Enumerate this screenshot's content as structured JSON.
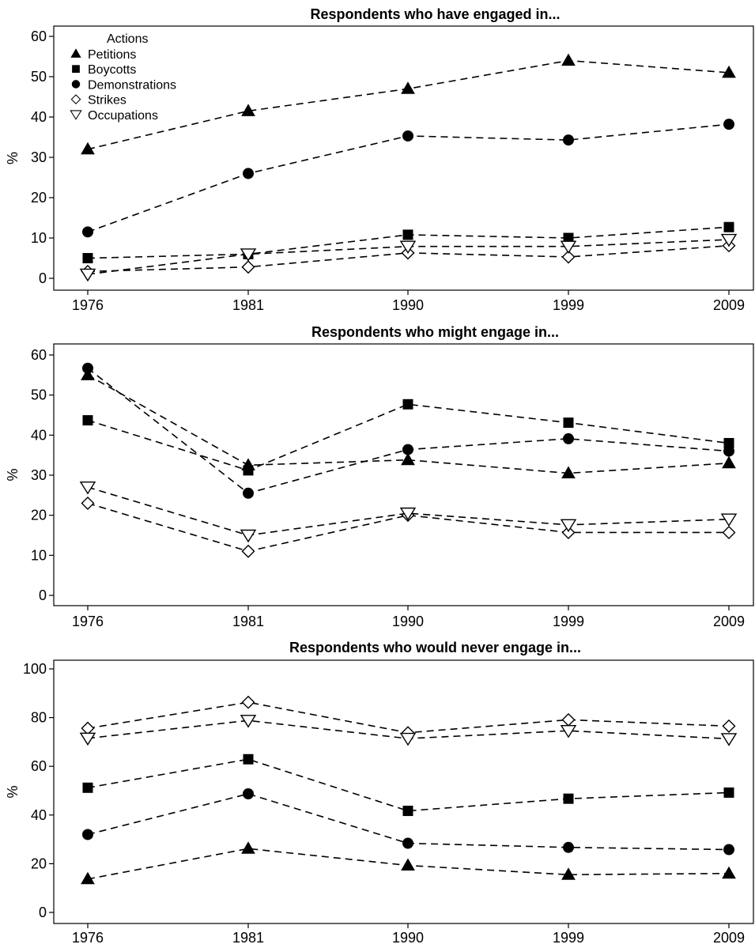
{
  "chart_data": [
    {
      "type": "line",
      "title": "Respondents who have engaged in...",
      "xlabel": "",
      "ylabel": "%",
      "x": [
        "1976",
        "1981",
        "1990",
        "1999",
        "2009"
      ],
      "ylim": [
        0,
        60
      ],
      "yticks": [
        0,
        10,
        20,
        30,
        40,
        50,
        60
      ],
      "legend": {
        "title": "Actions",
        "position": "top-left",
        "items": [
          "Petitions",
          "Boycotts",
          "Demonstrations",
          "Strikes",
          "Occupations"
        ]
      },
      "series": [
        {
          "name": "Petitions",
          "marker": "triangle-filled",
          "values": [
            32,
            41.5,
            47,
            54,
            51
          ]
        },
        {
          "name": "Boycotts",
          "marker": "square-filled",
          "values": [
            5,
            6,
            10.8,
            10,
            12.7
          ]
        },
        {
          "name": "Demonstrations",
          "marker": "circle-filled",
          "values": [
            11.5,
            26,
            35.3,
            34.3,
            38.2
          ]
        },
        {
          "name": "Strikes",
          "marker": "diamond-open",
          "values": [
            1.7,
            2.8,
            6.3,
            5.3,
            8.1
          ]
        },
        {
          "name": "Occupations",
          "marker": "triangle-down-open",
          "values": [
            1,
            6,
            7.9,
            7.9,
            9.6
          ]
        }
      ]
    },
    {
      "type": "line",
      "title": "Respondents who might engage in...",
      "xlabel": "",
      "ylabel": "%",
      "x": [
        "1976",
        "1981",
        "1990",
        "1999",
        "2009"
      ],
      "ylim": [
        0,
        60
      ],
      "yticks": [
        0,
        10,
        20,
        30,
        40,
        50,
        60
      ],
      "series": [
        {
          "name": "Petitions",
          "marker": "triangle-filled",
          "values": [
            55,
            32.5,
            33.8,
            30.5,
            33
          ]
        },
        {
          "name": "Boycotts",
          "marker": "square-filled",
          "values": [
            43.7,
            31.2,
            47.7,
            43.1,
            38
          ]
        },
        {
          "name": "Demonstrations",
          "marker": "circle-filled",
          "values": [
            56.7,
            25.5,
            36.4,
            39.1,
            36
          ]
        },
        {
          "name": "Strikes",
          "marker": "diamond-open",
          "values": [
            23,
            11,
            20,
            15.7,
            15.7
          ]
        },
        {
          "name": "Occupations",
          "marker": "triangle-down-open",
          "values": [
            27,
            15,
            20.5,
            17.6,
            19
          ]
        }
      ]
    },
    {
      "type": "line",
      "title": "Respondents who would never engage in...",
      "xlabel": "",
      "ylabel": "%",
      "x": [
        "1976",
        "1981",
        "1990",
        "1999",
        "2009"
      ],
      "ylim": [
        0,
        100
      ],
      "yticks": [
        0,
        20,
        40,
        60,
        80,
        100
      ],
      "series": [
        {
          "name": "Petitions",
          "marker": "triangle-filled",
          "values": [
            13.7,
            26.2,
            19.3,
            15.5,
            16
          ]
        },
        {
          "name": "Boycotts",
          "marker": "square-filled",
          "values": [
            51.2,
            62.9,
            41.7,
            46.7,
            49.2
          ]
        },
        {
          "name": "Demonstrations",
          "marker": "circle-filled",
          "values": [
            32,
            48.7,
            28.4,
            26.7,
            25.8
          ]
        },
        {
          "name": "Strikes",
          "marker": "diamond-open",
          "values": [
            75.6,
            86.3,
            73.8,
            79.1,
            76.5
          ]
        },
        {
          "name": "Occupations",
          "marker": "triangle-down-open",
          "values": [
            71.5,
            78.8,
            71.4,
            74.6,
            71.3
          ]
        }
      ]
    }
  ]
}
